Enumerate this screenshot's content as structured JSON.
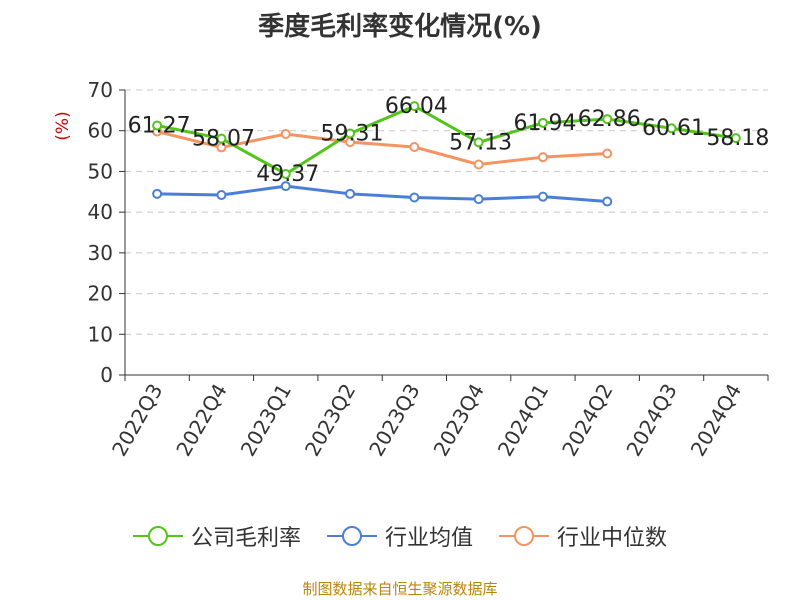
{
  "page_title": "季度毛利率变化情况(%)",
  "source_note": "制图数据来自恒生聚源数据库",
  "chart_data": {
    "type": "line",
    "title": "季度毛利率变化情况(%)",
    "xlabel": "",
    "ylabel": "(%)",
    "ylim": [
      0,
      70
    ],
    "yticks": [
      0,
      10,
      20,
      30,
      40,
      50,
      60,
      70
    ],
    "grid": true,
    "legend_position": "bottom",
    "categories": [
      "2022Q3",
      "2022Q4",
      "2023Q1",
      "2023Q2",
      "2023Q3",
      "2023Q4",
      "2024Q1",
      "2024Q2",
      "2024Q3",
      "2024Q4"
    ],
    "series": [
      {
        "name": "公司毛利率",
        "color": "#52c41a",
        "show_labels": true,
        "values": [
          61.27,
          58.07,
          49.37,
          59.31,
          66.04,
          57.13,
          61.94,
          62.86,
          60.61,
          58.18
        ]
      },
      {
        "name": "行业均值",
        "color": "#4a7fd9",
        "show_labels": false,
        "values": [
          44.5,
          44.2,
          46.4,
          44.5,
          43.6,
          43.2,
          43.8,
          42.6,
          null,
          null
        ]
      },
      {
        "name": "行业中位数",
        "color": "#f39462",
        "show_labels": false,
        "values": [
          59.8,
          55.9,
          59.2,
          57.2,
          56.0,
          51.7,
          53.5,
          54.4,
          null,
          null
        ]
      }
    ]
  }
}
